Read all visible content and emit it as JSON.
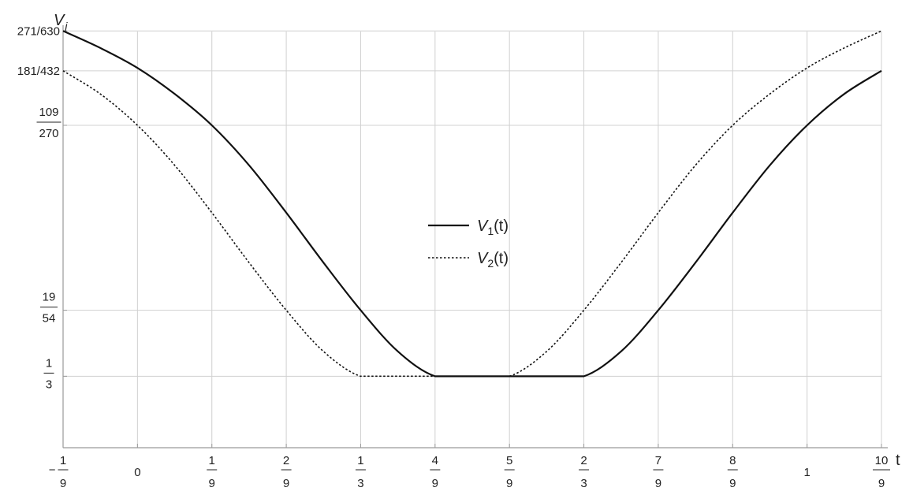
{
  "chart_data": {
    "type": "line",
    "xlabel": "t",
    "ylabel": {
      "base": "V",
      "sub": "j"
    },
    "xlim": [
      -0.111111,
      1.111111
    ],
    "ylim": [
      0.3133,
      0.43
    ],
    "grid": true,
    "legend_position": "center",
    "x_ticks": [
      {
        "value": -0.111111,
        "sign": "−",
        "num": "1",
        "den": "9"
      },
      {
        "value": 0,
        "label": "0"
      },
      {
        "value": 0.111111,
        "num": "1",
        "den": "9"
      },
      {
        "value": 0.222222,
        "num": "2",
        "den": "9"
      },
      {
        "value": 0.333333,
        "num": "1",
        "den": "3"
      },
      {
        "value": 0.444444,
        "num": "4",
        "den": "9"
      },
      {
        "value": 0.555556,
        "num": "5",
        "den": "9"
      },
      {
        "value": 0.666667,
        "num": "2",
        "den": "3"
      },
      {
        "value": 0.777778,
        "num": "7",
        "den": "9"
      },
      {
        "value": 0.888889,
        "num": "8",
        "den": "9"
      },
      {
        "value": 1,
        "label": "1"
      },
      {
        "value": 1.111111,
        "num": "10",
        "den": "9"
      }
    ],
    "y_ticks": [
      {
        "value": 0.333333,
        "num": "1",
        "den": "3"
      },
      {
        "value": 0.351852,
        "num": "19",
        "den": "54"
      },
      {
        "value": 0.403704,
        "num": "109",
        "den": "270"
      },
      {
        "value": 0.418981,
        "label": "181/432"
      },
      {
        "value": 0.430159,
        "label": "271/630"
      }
    ],
    "series": [
      {
        "name": "V",
        "name_sub": "1",
        "name_suffix": "(t)",
        "dash": "solid",
        "x": [
          -0.111111,
          -0.055556,
          0,
          0.055556,
          0.111111,
          0.166667,
          0.222222,
          0.277778,
          0.333333,
          0.388889,
          0.444444,
          0.5,
          0.555556,
          0.611111,
          0.666667,
          0.722222,
          0.777778,
          0.833333,
          0.888889,
          0.944444,
          1,
          1.055556,
          1.111111
        ],
        "y": [
          0.430159,
          0.4254,
          0.4198,
          0.4125,
          0.4037,
          0.3925,
          0.3792,
          0.3652,
          0.351852,
          0.3403,
          0.333333,
          0.333333,
          0.333333,
          0.333333,
          0.333333,
          0.3403,
          0.351852,
          0.3652,
          0.3792,
          0.3925,
          0.4037,
          0.4125,
          0.418981
        ]
      },
      {
        "name": "V",
        "name_sub": "2",
        "name_suffix": "(t)",
        "dash": "dotted",
        "x": [
          -0.111111,
          -0.055556,
          0,
          0.055556,
          0.111111,
          0.166667,
          0.222222,
          0.277778,
          0.333333,
          0.388889,
          0.444444,
          0.5,
          0.555556,
          0.611111,
          0.666667,
          0.722222,
          0.777778,
          0.833333,
          0.888889,
          0.944444,
          1,
          1.055556,
          1.111111
        ],
        "y": [
          0.418981,
          0.4125,
          0.4037,
          0.3925,
          0.3792,
          0.3652,
          0.351852,
          0.3403,
          0.333333,
          0.333333,
          0.333333,
          0.333333,
          0.333333,
          0.3403,
          0.351852,
          0.3652,
          0.3792,
          0.3925,
          0.4037,
          0.4125,
          0.4198,
          0.4254,
          0.430159
        ]
      }
    ]
  }
}
